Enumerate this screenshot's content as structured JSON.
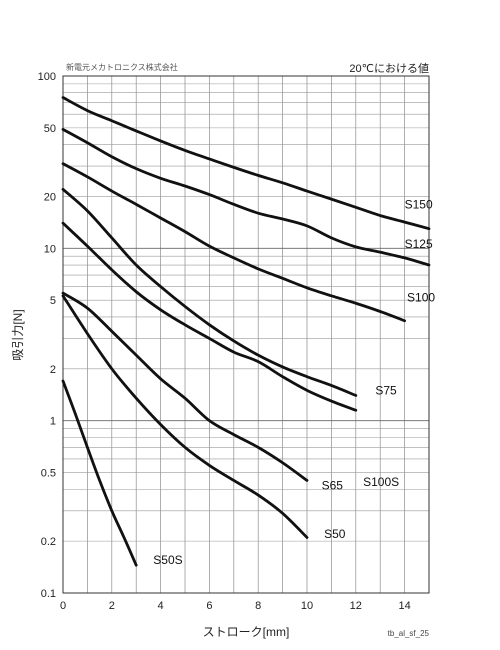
{
  "chart_data": {
    "type": "line",
    "company": "新電元メカトロニクス株式会社",
    "note": "20℃における値",
    "xlabel": "ストローク[mm]",
    "ylabel": "吸引力[N]",
    "footer_code": "tb_al_sf_25",
    "xlim": [
      0,
      15
    ],
    "ylim": [
      0.1,
      100
    ],
    "yscale": "log",
    "x_ticks": [
      "0",
      "2",
      "4",
      "6",
      "8",
      "10",
      "12",
      "14"
    ],
    "y_ticks": [
      {
        "value": 100,
        "label": "100"
      },
      {
        "value": 50,
        "label": "50"
      },
      {
        "value": 20,
        "label": "20"
      },
      {
        "value": 10,
        "label": "10"
      },
      {
        "value": 5,
        "label": "5"
      },
      {
        "value": 2,
        "label": "2"
      },
      {
        "value": 1,
        "label": "1"
      },
      {
        "value": 0.5,
        "label": "0.5"
      },
      {
        "value": 0.2,
        "label": "0.2"
      },
      {
        "value": 0.1,
        "label": "0.1"
      }
    ],
    "grid": true,
    "series": [
      {
        "name": "S150",
        "label_at": [
          14,
          18
        ],
        "x": [
          0,
          1,
          2,
          3,
          4,
          5,
          6,
          7,
          8,
          9,
          10,
          11,
          12,
          13,
          14,
          15
        ],
        "y": [
          75,
          63,
          55,
          48,
          42,
          37,
          33,
          29.5,
          26.5,
          24,
          21.5,
          19.3,
          17.3,
          15.5,
          14.2,
          13
        ]
      },
      {
        "name": "S125",
        "label_at": [
          14,
          10.6
        ],
        "x": [
          0,
          1,
          2,
          3,
          4,
          5,
          6,
          7,
          8,
          9,
          10,
          11,
          12,
          13,
          14,
          15
        ],
        "y": [
          49,
          41,
          34,
          29,
          25.5,
          23,
          20.5,
          18,
          16,
          14.8,
          13.5,
          11.5,
          10.2,
          9.5,
          8.8,
          8
        ]
      },
      {
        "name": "S100",
        "label_at": [
          14.1,
          5.2
        ],
        "x": [
          0,
          1,
          2,
          3,
          4,
          5,
          6,
          7,
          8,
          9,
          10,
          11,
          12,
          13,
          14
        ],
        "y": [
          31,
          26,
          21.5,
          18,
          15,
          12.5,
          10.3,
          8.8,
          7.6,
          6.7,
          5.9,
          5.3,
          4.8,
          4.3,
          3.8
        ]
      },
      {
        "name": "S75",
        "label_at": [
          12.8,
          1.5
        ],
        "x": [
          0,
          1,
          2,
          3,
          4,
          5,
          6,
          7,
          8,
          9,
          10,
          11,
          12
        ],
        "y": [
          22,
          16.5,
          11.5,
          8,
          6,
          4.6,
          3.6,
          2.9,
          2.4,
          2.05,
          1.8,
          1.6,
          1.4
        ]
      },
      {
        "name": "S100S",
        "label_at": [
          12.3,
          0.44
        ],
        "x": [
          0,
          1,
          2,
          3,
          4,
          5,
          6,
          7,
          8,
          9,
          10,
          11,
          12
        ],
        "y": [
          14,
          10.3,
          7.5,
          5.6,
          4.4,
          3.6,
          3,
          2.5,
          2.2,
          1.8,
          1.5,
          1.3,
          1.15
        ]
      },
      {
        "name": "S65",
        "label_at": [
          10.6,
          0.42
        ],
        "x": [
          0,
          1,
          2,
          3,
          4,
          5,
          6,
          7,
          8,
          9,
          10
        ],
        "y": [
          5.5,
          4.5,
          3.3,
          2.4,
          1.75,
          1.35,
          1,
          0.83,
          0.7,
          0.57,
          0.45
        ]
      },
      {
        "name": "S50",
        "label_at": [
          10.7,
          0.22
        ],
        "x": [
          0,
          1,
          2,
          3,
          4,
          5,
          6,
          7,
          8,
          9,
          10
        ],
        "y": [
          5.3,
          3.2,
          2,
          1.35,
          0.95,
          0.7,
          0.55,
          0.45,
          0.37,
          0.29,
          0.21
        ]
      },
      {
        "name": "S50S",
        "label_at": [
          3.7,
          0.155
        ],
        "x": [
          0,
          0.5,
          1,
          1.5,
          2,
          2.5,
          3
        ],
        "y": [
          1.7,
          1.1,
          0.7,
          0.45,
          0.3,
          0.21,
          0.145
        ]
      }
    ]
  }
}
